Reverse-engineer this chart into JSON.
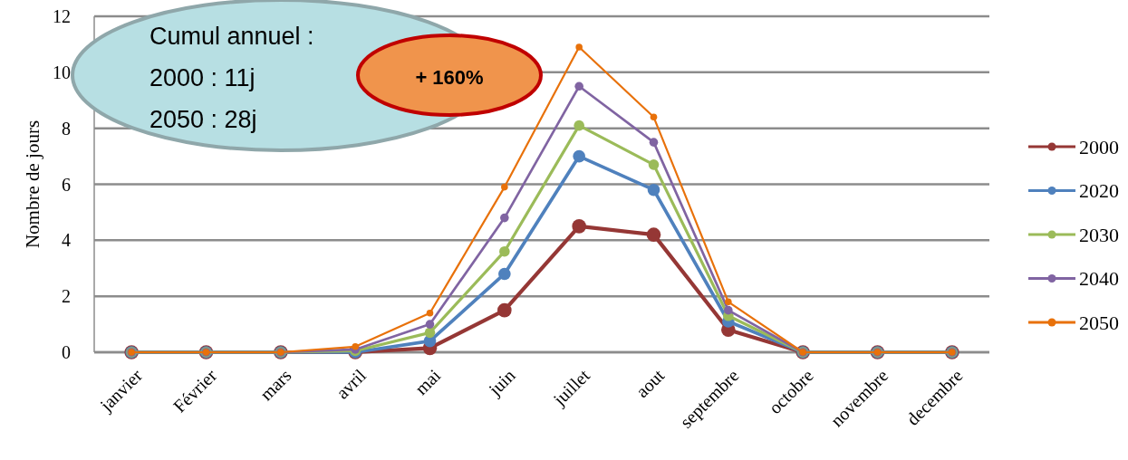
{
  "chart_data": {
    "type": "line",
    "ylabel": "Nombre de jours",
    "categories": [
      "janvier",
      "Février",
      "mars",
      "avril",
      "mai",
      "juin",
      "juillet",
      "aout",
      "septembre",
      "octobre",
      "novembre",
      "decembre"
    ],
    "series": [
      {
        "name": "2000",
        "color": "#953735",
        "values": [
          0,
          0,
          0,
          0,
          0.15,
          1.5,
          4.5,
          4.2,
          0.8,
          0,
          0,
          0
        ]
      },
      {
        "name": "2020",
        "color": "#4f81bd",
        "values": [
          0,
          0,
          0,
          0,
          0.4,
          2.8,
          7.0,
          5.8,
          1.1,
          0,
          0,
          0
        ]
      },
      {
        "name": "2030",
        "color": "#9bbb59",
        "values": [
          0,
          0,
          0,
          0.05,
          0.7,
          3.6,
          8.1,
          6.7,
          1.3,
          0,
          0,
          0
        ]
      },
      {
        "name": "2040",
        "color": "#8064a2",
        "values": [
          0,
          0,
          0,
          0.1,
          1.0,
          4.8,
          9.5,
          7.5,
          1.5,
          0,
          0,
          0
        ]
      },
      {
        "name": "2050",
        "color": "#e8710a",
        "values": [
          0,
          0,
          0,
          0.2,
          1.4,
          5.9,
          10.9,
          8.4,
          1.8,
          0,
          0,
          0
        ]
      }
    ],
    "ylim": [
      0,
      12
    ],
    "yticks": [
      0,
      2,
      4,
      6,
      8,
      10,
      12
    ],
    "grid": "y",
    "legend": "right",
    "marker": "circle",
    "line_style": "solid",
    "annotations": [
      "Cumul annuel :\n2000 : 11j\n2050 : 28j",
      "+ 160%"
    ]
  }
}
